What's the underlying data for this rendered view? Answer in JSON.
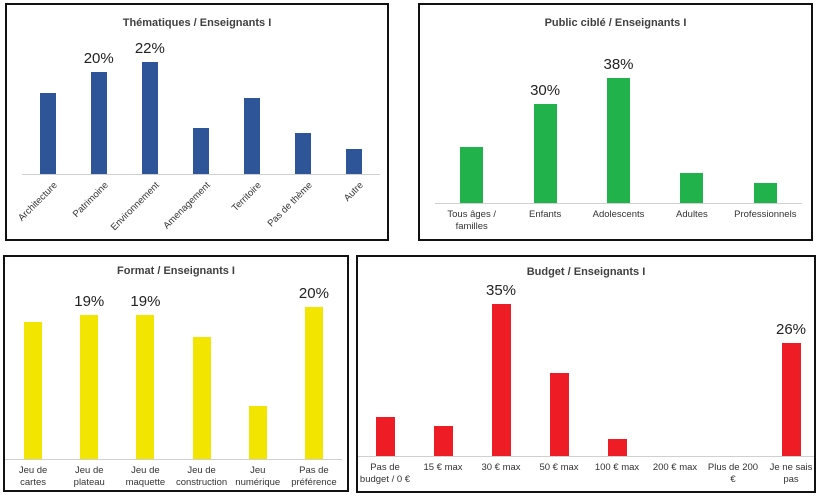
{
  "chart_data": [
    {
      "type": "bar",
      "title": "Thématiques / Enseignants I",
      "color": "#2e5597",
      "categories": [
        "Architecture",
        "Patrimoine",
        "Environnement",
        "Amenagement",
        "Territoire",
        "Pas de thème",
        "Autre"
      ],
      "values": [
        16,
        20,
        22,
        9,
        15,
        8,
        5
      ],
      "value_labels": [
        null,
        "20%",
        "22%",
        null,
        null,
        null,
        null
      ]
    },
    {
      "type": "bar",
      "title": "Public ciblé / Enseignants I",
      "color": "#22b24c",
      "categories": [
        "Tous âges / familles",
        "Enfants",
        "Adolescents",
        "Adultes",
        "Professionnels"
      ],
      "values": [
        17,
        30,
        38,
        9,
        6
      ],
      "value_labels": [
        null,
        "30%",
        "38%",
        null,
        null
      ]
    },
    {
      "type": "bar",
      "title": "Format / Enseignants I",
      "color": "#f2e600",
      "categories": [
        "Jeu de cartes",
        "Jeu de plateau",
        "Jeu de maquette",
        "Jeu de construction",
        "Jeu numérique",
        "Pas de préférence"
      ],
      "values": [
        18,
        19,
        19,
        16,
        7,
        20
      ],
      "value_labels": [
        null,
        "19%",
        "19%",
        null,
        null,
        "20%"
      ]
    },
    {
      "type": "bar",
      "title": "Budget / Enseignants I",
      "color": "#ee1c25",
      "categories": [
        "Pas de budget / 0 €",
        "15 € max",
        "30 € max",
        "50 € max",
        "100 € max",
        "200 € max",
        "Plus de 200 €",
        "Je ne sais pas"
      ],
      "values": [
        9,
        7,
        35,
        19,
        4,
        0,
        0,
        26
      ],
      "value_labels": [
        null,
        null,
        "35%",
        null,
        null,
        null,
        null,
        "26%"
      ]
    }
  ]
}
